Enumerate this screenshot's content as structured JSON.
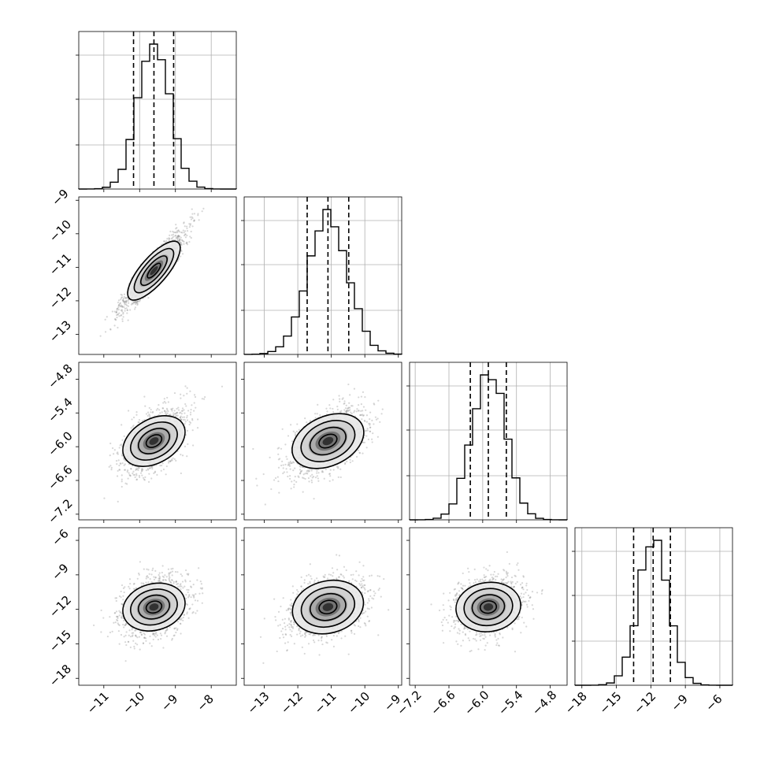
{
  "chart_data": {
    "type": "corner",
    "params": [
      {
        "range": [
          -11.7,
          -7.3
        ],
        "ticks": [
          -11,
          -10,
          -9,
          -8
        ],
        "tick_labels": [
          "−11",
          "−10",
          "−9",
          "−8"
        ],
        "mean": -9.6,
        "sd": 0.45,
        "quantiles": [
          -10.17,
          -9.6,
          -9.05
        ]
      },
      {
        "range": [
          -13.6,
          -8.9
        ],
        "ticks": [
          -13,
          -12,
          -11,
          -10,
          -9
        ],
        "tick_labels": [
          "−13",
          "−12",
          "−11",
          "−10",
          "−9"
        ],
        "mean": -11.1,
        "sd": 0.6,
        "quantiles": [
          -11.72,
          -11.1,
          -10.48
        ]
      },
      {
        "range": [
          -7.3,
          -4.5
        ],
        "ticks": [
          -7.2,
          -6.6,
          -6.0,
          -5.4,
          -4.8
        ],
        "tick_labels": [
          "−7.2",
          "−6.6",
          "−6.0",
          "−5.4",
          "−4.8"
        ],
        "mean": -5.9,
        "sd": 0.3,
        "quantiles": [
          -6.22,
          -5.9,
          -5.58
        ]
      },
      {
        "range": [
          -18.6,
          -4.9
        ],
        "ticks": [
          -18,
          -15,
          -12,
          -9,
          -6
        ],
        "tick_labels": [
          "−18",
          "−15",
          "−12",
          "−9",
          "−6"
        ],
        "mean": -11.8,
        "sd": 1.3,
        "quantiles": [
          -13.5,
          -11.8,
          -10.3
        ]
      }
    ],
    "correlations": [
      [
        1,
        0.93,
        0.55,
        0.3
      ],
      [
        0.93,
        1,
        0.55,
        0.35
      ],
      [
        0.55,
        0.55,
        1,
        0.15
      ],
      [
        0.3,
        0.35,
        0.15,
        1
      ]
    ],
    "grid": true,
    "contour_levels": [
      0.5,
      1.0,
      1.5,
      2.0
    ]
  }
}
